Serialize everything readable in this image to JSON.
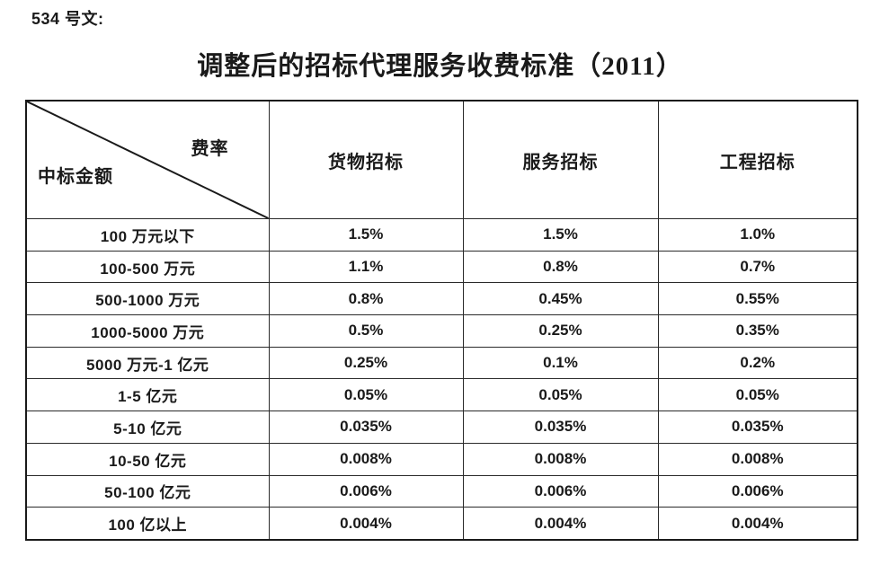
{
  "doc": {
    "doc_label": "534 号文:",
    "title": "调整后的招标代理服务收费标准（2011）"
  },
  "table": {
    "corner": {
      "top_right": "费率",
      "bottom_left": "中标金额"
    },
    "columns": [
      "货物招标",
      "服务招标",
      "工程招标"
    ],
    "rows": [
      {
        "label": "100 万元以下",
        "values": [
          "1.5%",
          "1.5%",
          "1.0%"
        ]
      },
      {
        "label": "100-500 万元",
        "values": [
          "1.1%",
          "0.8%",
          "0.7%"
        ]
      },
      {
        "label": "500-1000 万元",
        "values": [
          "0.8%",
          "0.45%",
          "0.55%"
        ]
      },
      {
        "label": "1000-5000 万元",
        "values": [
          "0.5%",
          "0.25%",
          "0.35%"
        ]
      },
      {
        "label": "5000 万元-1 亿元",
        "values": [
          "0.25%",
          "0.1%",
          "0.2%"
        ]
      },
      {
        "label": "1-5 亿元",
        "values": [
          "0.05%",
          "0.05%",
          "0.05%"
        ]
      },
      {
        "label": "5-10 亿元",
        "values": [
          "0.035%",
          "0.035%",
          "0.035%"
        ]
      },
      {
        "label": "10-50 亿元",
        "values": [
          "0.008%",
          "0.008%",
          "0.008%"
        ]
      },
      {
        "label": "50-100 亿元",
        "values": [
          "0.006%",
          "0.006%",
          "0.006%"
        ]
      },
      {
        "label": "100 亿以上",
        "values": [
          "0.004%",
          "0.004%",
          "0.004%"
        ]
      }
    ]
  },
  "colors": {
    "background": "#ffffff",
    "text": "#1a1a1a",
    "border": "#2a2a2a"
  }
}
